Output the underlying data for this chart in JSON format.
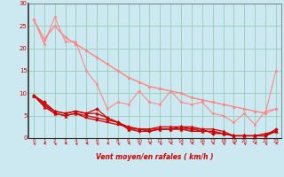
{
  "background_color": "#cce8f0",
  "grid_color": "#99ccbb",
  "text_color": "#cc0000",
  "xlabel": "Vent moyen/en rafales ( km/h )",
  "xlim": [
    -0.5,
    23.5
  ],
  "ylim": [
    0,
    30
  ],
  "xticks": [
    0,
    1,
    2,
    3,
    4,
    5,
    6,
    7,
    8,
    9,
    10,
    11,
    12,
    13,
    14,
    15,
    16,
    17,
    18,
    19,
    20,
    21,
    22,
    23
  ],
  "yticks": [
    0,
    5,
    10,
    15,
    20,
    25,
    30
  ],
  "line_pink1": {
    "x": [
      0,
      1,
      2,
      3,
      4,
      5,
      6,
      7,
      8,
      9,
      10,
      11,
      12,
      13,
      14,
      15,
      16,
      17,
      18,
      19,
      20,
      21,
      22,
      23
    ],
    "y": [
      26.5,
      21.0,
      27.0,
      21.5,
      21.5,
      15.0,
      12.0,
      6.5,
      8.0,
      7.5,
      10.5,
      8.0,
      7.5,
      10.5,
      8.0,
      7.5,
      8.0,
      5.5,
      5.0,
      3.5,
      5.5,
      3.0,
      6.0,
      6.5
    ],
    "color": "#ff8888",
    "marker": "o",
    "markersize": 1.8,
    "linewidth": 0.8
  },
  "line_pink2": {
    "x": [
      0,
      1,
      2,
      3,
      4,
      5,
      6,
      7,
      8,
      9,
      10,
      11,
      12,
      13,
      14,
      15,
      16,
      17,
      18,
      19,
      20,
      21,
      22,
      23
    ],
    "y": [
      26.5,
      22.0,
      25.0,
      22.5,
      21.0,
      19.5,
      18.0,
      16.5,
      15.0,
      13.5,
      12.5,
      11.5,
      11.0,
      10.5,
      10.0,
      9.0,
      8.5,
      8.0,
      7.5,
      7.0,
      6.5,
      6.0,
      5.5,
      15.0
    ],
    "color": "#ff8888",
    "marker": "o",
    "markersize": 1.8,
    "linewidth": 0.8
  },
  "line_pink3": {
    "x": [
      0,
      1,
      2,
      3,
      4,
      5,
      6,
      7,
      8,
      9,
      10,
      11,
      12,
      13,
      14,
      15,
      16,
      17,
      18,
      19,
      20,
      21,
      22,
      23
    ],
    "y": [
      26.5,
      22.0,
      25.0,
      22.5,
      21.0,
      19.5,
      18.0,
      16.5,
      15.0,
      13.5,
      12.5,
      11.5,
      11.0,
      10.5,
      10.0,
      9.0,
      8.5,
      8.0,
      7.5,
      7.0,
      6.5,
      6.0,
      5.5,
      6.5
    ],
    "color": "#ff8888",
    "marker": "o",
    "markersize": 1.8,
    "linewidth": 0.8
  },
  "line_red1": {
    "x": [
      0,
      1,
      2,
      3,
      4,
      5,
      6,
      7,
      8,
      9,
      10,
      11,
      12,
      13,
      14,
      15,
      16,
      17,
      18,
      19,
      20,
      21,
      22,
      23
    ],
    "y": [
      9.5,
      7.5,
      6.0,
      5.5,
      6.0,
      5.5,
      5.5,
      4.5,
      3.5,
      2.0,
      2.0,
      2.0,
      2.5,
      2.5,
      2.5,
      2.5,
      2.0,
      2.0,
      1.5,
      0.5,
      0.5,
      0.5,
      1.0,
      1.5
    ],
    "color": "#cc0000",
    "marker": "^",
    "markersize": 2.5,
    "linewidth": 0.9
  },
  "line_red2": {
    "x": [
      0,
      1,
      2,
      3,
      4,
      5,
      6,
      7,
      8,
      9,
      10,
      11,
      12,
      13,
      14,
      15,
      16,
      17,
      18,
      19,
      20,
      21,
      22,
      23
    ],
    "y": [
      9.5,
      7.0,
      5.5,
      5.0,
      5.5,
      5.0,
      4.5,
      4.0,
      3.5,
      2.5,
      2.0,
      2.0,
      2.0,
      2.0,
      2.0,
      2.0,
      1.5,
      1.5,
      1.0,
      0.5,
      0.5,
      0.5,
      0.5,
      1.5
    ],
    "color": "#cc0000",
    "marker": "^",
    "markersize": 2.5,
    "linewidth": 0.9
  },
  "line_red3": {
    "x": [
      0,
      1,
      2,
      3,
      4,
      5,
      6,
      7,
      8,
      9,
      10,
      11,
      12,
      13,
      14,
      15,
      16,
      17,
      18,
      19,
      20,
      21,
      22,
      23
    ],
    "y": [
      9.5,
      7.5,
      5.5,
      5.0,
      5.5,
      4.5,
      4.0,
      3.5,
      3.0,
      2.5,
      2.0,
      1.5,
      2.0,
      2.0,
      2.0,
      1.5,
      1.5,
      1.5,
      1.0,
      0.5,
      0.5,
      0.5,
      0.5,
      1.5
    ],
    "color": "#cc0000",
    "marker": "s",
    "markersize": 2.0,
    "linewidth": 0.9
  },
  "line_red4": {
    "x": [
      0,
      1,
      2,
      3,
      4,
      5,
      6,
      7,
      8,
      9,
      10,
      11,
      12,
      13,
      14,
      15,
      16,
      17,
      18,
      19,
      20,
      21,
      22,
      23
    ],
    "y": [
      9.5,
      8.0,
      6.0,
      5.5,
      6.0,
      5.5,
      6.5,
      4.5,
      3.5,
      2.0,
      1.5,
      1.5,
      2.0,
      2.0,
      2.5,
      2.0,
      2.0,
      1.0,
      1.0,
      0.5,
      0.5,
      0.5,
      0.5,
      2.0
    ],
    "color": "#cc0000",
    "marker": "D",
    "markersize": 2.0,
    "linewidth": 0.9
  },
  "wind_arrows_x": [
    0,
    1,
    2,
    3,
    4,
    5,
    6,
    7,
    8,
    9,
    10,
    11,
    12,
    13,
    14,
    15,
    16,
    17,
    18,
    19,
    20,
    21,
    22,
    23
  ],
  "wind_dirs": [
    225,
    270,
    225,
    270,
    225,
    270,
    225,
    270,
    225,
    270,
    225,
    270,
    225,
    270,
    225,
    270,
    225,
    270,
    225,
    270,
    225,
    270,
    225,
    270
  ]
}
